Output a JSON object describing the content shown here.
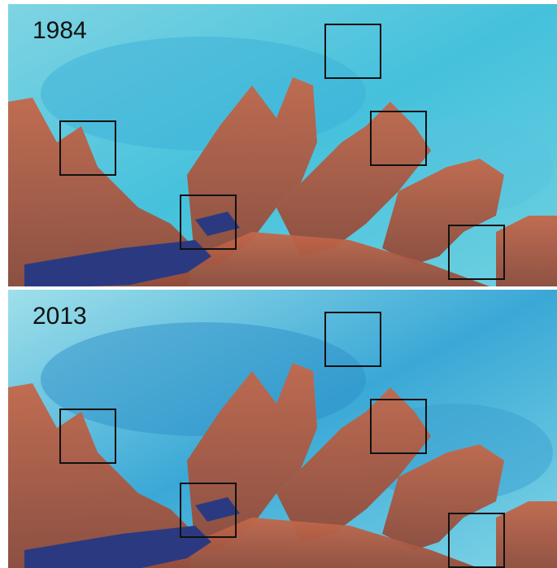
{
  "panels": [
    {
      "label": "1984"
    },
    {
      "label": "2013"
    }
  ]
}
